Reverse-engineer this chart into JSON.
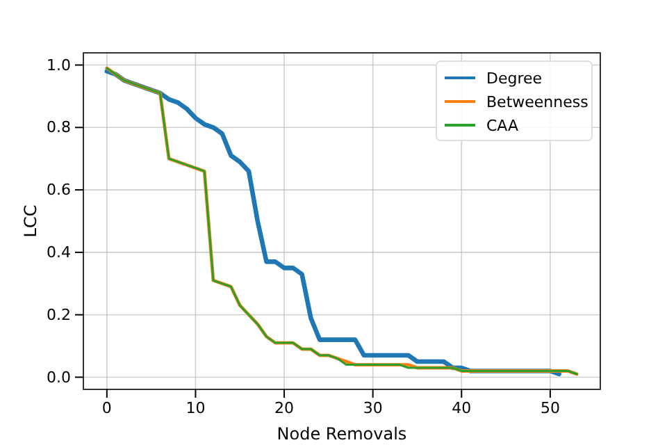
{
  "chart_data": {
    "type": "line",
    "xlabel": "Node Removals",
    "ylabel": "LCC",
    "xlim": [
      -2.65,
      55.65
    ],
    "ylim": [
      -0.039,
      1.039
    ],
    "xticks": [
      0,
      10,
      20,
      30,
      40,
      50
    ],
    "yticks": [
      {
        "value": 0,
        "label": "0.0"
      },
      {
        "value": 0.2,
        "label": "0.2"
      },
      {
        "value": 0.4,
        "label": "0.4"
      },
      {
        "value": 0.6,
        "label": "0.6"
      },
      {
        "value": 0.8,
        "label": "0.8"
      },
      {
        "value": 1,
        "label": "1.0"
      }
    ],
    "grid": true,
    "legend": "top right",
    "x": [
      0,
      1,
      2,
      3,
      4,
      5,
      6,
      7,
      8,
      9,
      10,
      11,
      12,
      13,
      14,
      15,
      16,
      17,
      18,
      19,
      20,
      21,
      22,
      23,
      24,
      25,
      26,
      27,
      28,
      29,
      30,
      31,
      32,
      33,
      34,
      35,
      36,
      37,
      38,
      39,
      40,
      41,
      42,
      43,
      44,
      45,
      46,
      47,
      48,
      49,
      50,
      51,
      52,
      53
    ],
    "series": [
      {
        "name": "Degree",
        "color": "#1f77b4",
        "x": [
          0,
          1,
          2,
          3,
          4,
          5,
          6,
          7,
          8,
          9,
          10,
          11,
          12,
          13,
          14,
          15,
          16,
          17,
          18,
          19,
          20,
          21,
          22,
          23,
          24,
          25,
          26,
          27,
          28,
          29,
          30,
          31,
          32,
          33,
          34,
          35,
          36,
          37,
          38,
          39,
          40,
          41,
          42,
          43,
          44,
          45,
          46,
          47,
          48,
          49,
          50,
          51
        ],
        "values": [
          0.98,
          0.97,
          0.95,
          0.94,
          0.93,
          0.92,
          0.91,
          0.89,
          0.88,
          0.86,
          0.83,
          0.81,
          0.8,
          0.78,
          0.71,
          0.69,
          0.66,
          0.5,
          0.37,
          0.37,
          0.35,
          0.35,
          0.33,
          0.19,
          0.12,
          0.12,
          0.12,
          0.12,
          0.12,
          0.07,
          0.07,
          0.07,
          0.07,
          0.07,
          0.07,
          0.05,
          0.05,
          0.05,
          0.05,
          0.03,
          0.03,
          0.02,
          0.02,
          0.02,
          0.02,
          0.02,
          0.02,
          0.02,
          0.02,
          0.02,
          0.02,
          0.01
        ]
      },
      {
        "name": "Betweenness",
        "color": "#ff7f0e",
        "values": [
          0.99,
          0.97,
          0.95,
          0.94,
          0.93,
          0.92,
          0.91,
          0.7,
          0.69,
          0.68,
          0.67,
          0.66,
          0.31,
          0.3,
          0.29,
          0.23,
          0.2,
          0.17,
          0.13,
          0.11,
          0.11,
          0.11,
          0.09,
          0.09,
          0.07,
          0.07,
          0.06,
          0.05,
          0.04,
          0.04,
          0.04,
          0.04,
          0.04,
          0.04,
          0.04,
          0.03,
          0.03,
          0.03,
          0.03,
          0.03,
          0.02,
          0.02,
          0.02,
          0.02,
          0.02,
          0.02,
          0.02,
          0.02,
          0.02,
          0.02,
          0.02,
          0.02,
          0.02,
          0.01
        ]
      },
      {
        "name": "CAA",
        "color": "#2ca02c",
        "values": [
          0.99,
          0.97,
          0.95,
          0.94,
          0.93,
          0.92,
          0.91,
          0.7,
          0.69,
          0.68,
          0.67,
          0.66,
          0.31,
          0.3,
          0.29,
          0.23,
          0.2,
          0.17,
          0.13,
          0.11,
          0.11,
          0.11,
          0.09,
          0.09,
          0.07,
          0.07,
          0.06,
          0.04,
          0.04,
          0.04,
          0.04,
          0.04,
          0.04,
          0.04,
          0.03,
          0.03,
          0.03,
          0.03,
          0.03,
          0.03,
          0.02,
          0.02,
          0.02,
          0.02,
          0.02,
          0.02,
          0.02,
          0.02,
          0.02,
          0.02,
          0.02,
          0.02,
          0.02,
          0.01
        ]
      }
    ]
  }
}
